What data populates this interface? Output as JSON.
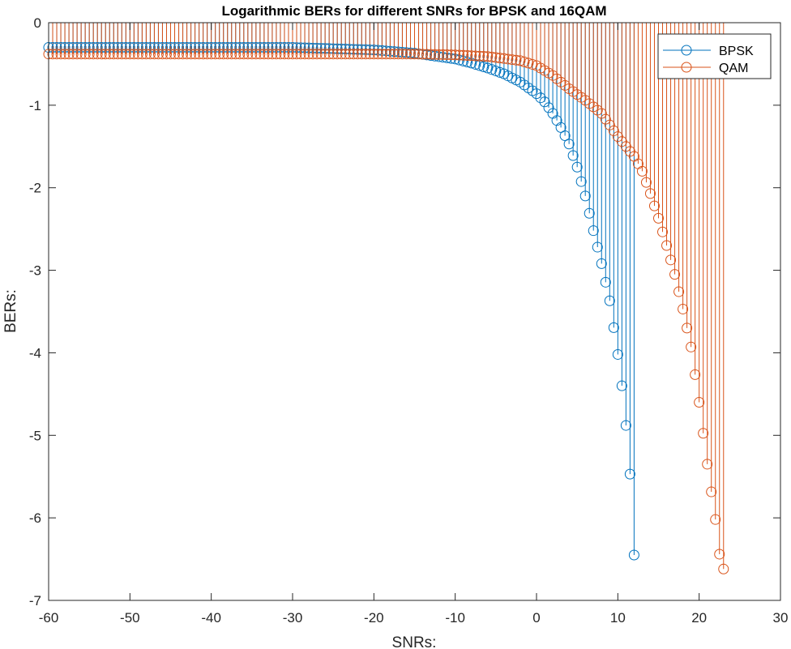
{
  "chart_data": {
    "type": "stem",
    "title": "Logarithmic BERs for different SNRs for BPSK and 16QAM",
    "xlabel": "SNRs:",
    "ylabel": "BERs:",
    "xlim": [
      -60,
      30
    ],
    "ylim": [
      -7,
      0
    ],
    "xticks": [
      -60,
      -50,
      -40,
      -30,
      -20,
      -10,
      0,
      10,
      20,
      30
    ],
    "yticks": [
      -7,
      -6,
      -5,
      -4,
      -3,
      -2,
      -1,
      0
    ],
    "grid": false,
    "legend_position": "top-right",
    "x": {
      "start": -60,
      "stop": 23,
      "step": 0.5
    },
    "series": [
      {
        "name": "BPSK",
        "color": "#0072BD",
        "marker": "circle",
        "stems_from": 0,
        "points": [
          [
            -60,
            -0.3
          ],
          [
            -50,
            -0.3
          ],
          [
            -40,
            -0.3
          ],
          [
            -30,
            -0.3
          ],
          [
            -20,
            -0.33
          ],
          [
            -15,
            -0.37
          ],
          [
            -10,
            -0.44
          ],
          [
            -8,
            -0.49
          ],
          [
            -6,
            -0.55
          ],
          [
            -4,
            -0.62
          ],
          [
            -2,
            -0.72
          ],
          [
            0,
            -0.86
          ],
          [
            1,
            -0.96
          ],
          [
            2,
            -1.1
          ],
          [
            3,
            -1.27
          ],
          [
            4,
            -1.47
          ],
          [
            5,
            -1.75
          ],
          [
            6,
            -2.1
          ],
          [
            7,
            -2.52
          ],
          [
            8,
            -2.92
          ],
          [
            9,
            -3.37
          ],
          [
            10,
            -4.02
          ],
          [
            10.5,
            -4.4
          ],
          [
            11,
            -4.88
          ],
          [
            11.5,
            -5.47
          ],
          [
            12,
            -6.45
          ]
        ]
      },
      {
        "name": "QAM",
        "color": "#D95319",
        "marker": "circle",
        "stems_from": 0,
        "points": [
          [
            -60,
            -0.38
          ],
          [
            -50,
            -0.38
          ],
          [
            -40,
            -0.38
          ],
          [
            -30,
            -0.38
          ],
          [
            -20,
            -0.38
          ],
          [
            -15,
            -0.38
          ],
          [
            -10,
            -0.39
          ],
          [
            -6,
            -0.41
          ],
          [
            -2,
            -0.46
          ],
          [
            0,
            -0.52
          ],
          [
            2,
            -0.64
          ],
          [
            4,
            -0.8
          ],
          [
            6,
            -0.94
          ],
          [
            8,
            -1.1
          ],
          [
            10,
            -1.38
          ],
          [
            11,
            -1.5
          ],
          [
            12,
            -1.62
          ],
          [
            13,
            -1.8
          ],
          [
            14,
            -2.07
          ],
          [
            15,
            -2.37
          ],
          [
            16,
            -2.7
          ],
          [
            17,
            -3.05
          ],
          [
            18,
            -3.47
          ],
          [
            19,
            -3.93
          ],
          [
            20,
            -4.6
          ],
          [
            21,
            -5.35
          ],
          [
            22,
            -6.02
          ],
          [
            22.5,
            -6.44
          ],
          [
            23,
            -6.62
          ]
        ]
      }
    ]
  }
}
